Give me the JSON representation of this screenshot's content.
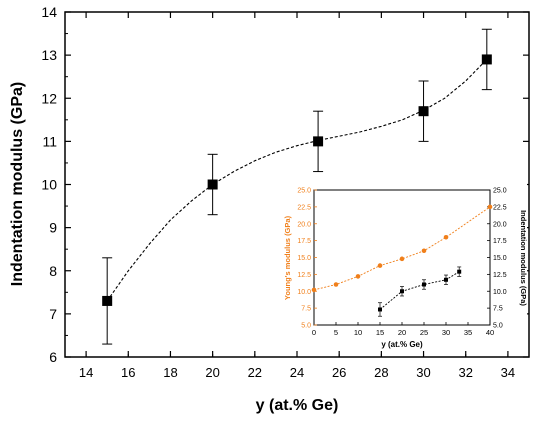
{
  "chart_data": [
    {
      "type": "scatter",
      "xlabel": "y (at.% Ge)",
      "ylabel": "Indentation modulus (GPa)",
      "xlim": [
        13,
        35
      ],
      "ylim": [
        6,
        14
      ],
      "xticks": [
        14,
        16,
        18,
        20,
        22,
        24,
        26,
        28,
        30,
        32,
        34
      ],
      "yticks": [
        6,
        7,
        8,
        9,
        10,
        11,
        12,
        13,
        14
      ],
      "grid": false,
      "series": [
        {
          "x": [
            15,
            20,
            25,
            30,
            33
          ],
          "y": [
            7.3,
            10.0,
            11.0,
            11.7,
            12.9
          ],
          "err": [
            1.0,
            0.7,
            0.7,
            0.7,
            0.7
          ],
          "marker": "square",
          "color": "#000000",
          "fit": {
            "x": [
              15,
              16,
              17,
              18,
              19,
              20,
              21,
              22,
              23,
              24,
              25,
              26,
              27,
              28,
              29,
              30,
              31,
              32,
              33
            ],
            "y": [
              7.3,
              8.0,
              8.62,
              9.18,
              9.62,
              10.0,
              10.3,
              10.55,
              10.75,
              10.9,
              11.02,
              11.12,
              11.22,
              11.35,
              11.5,
              11.72,
              12.0,
              12.4,
              12.9
            ]
          }
        }
      ]
    },
    {
      "type": "scatter",
      "xlabel": "y (at.% Ge)",
      "ylabel": "Young's modulus (GPa)",
      "ylabel_right": "Indentation modulus (GPa)",
      "xlim": [
        0,
        40
      ],
      "ylim": [
        5,
        25
      ],
      "xticks": [
        0,
        5,
        10,
        15,
        20,
        25,
        30,
        35,
        40
      ],
      "yticks": [
        "5.0",
        "7.5",
        "10.0",
        "12.5",
        "15.0",
        "17.5",
        "20.0",
        "22.5",
        "25.0"
      ],
      "accent_color": "#f07f1a",
      "grid": false,
      "series": [
        {
          "x": [
            0,
            5,
            10,
            15,
            20,
            25,
            30,
            40
          ],
          "y": [
            10.2,
            11.0,
            12.2,
            13.8,
            14.8,
            16.0,
            18.0,
            22.5
          ],
          "marker": "circle",
          "color": "#f07f1a",
          "axis": "left"
        },
        {
          "x": [
            15,
            20,
            25,
            30,
            33
          ],
          "y": [
            7.3,
            10.0,
            11.0,
            11.7,
            12.9
          ],
          "err": [
            1.0,
            0.7,
            0.7,
            0.7,
            0.7
          ],
          "marker": "square",
          "color": "#000000",
          "axis": "right"
        }
      ]
    }
  ]
}
